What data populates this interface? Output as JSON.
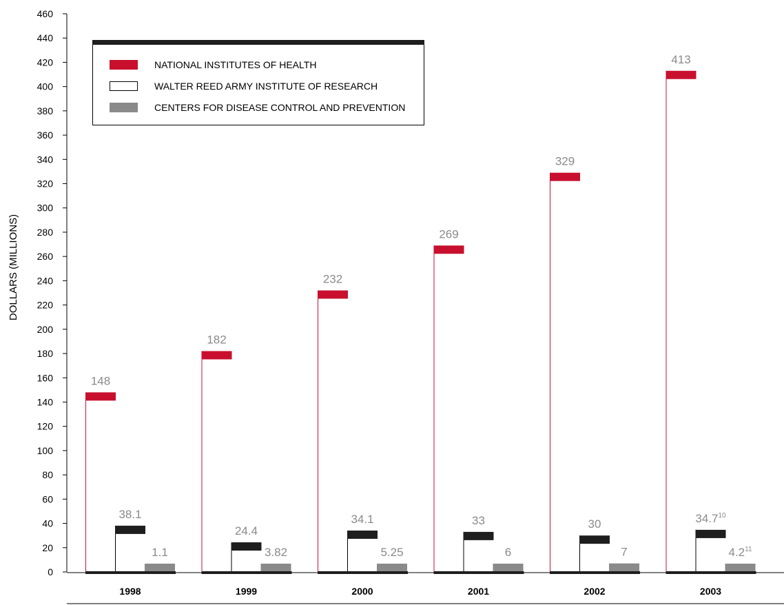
{
  "colors": {
    "nih": "#c8102e",
    "wrair": "#ffffff",
    "cdc": "#8a8a8a",
    "cap": "#1e1e1e",
    "axis": "#000000",
    "value_text": "#8a8a8a"
  },
  "chart_data": {
    "type": "bar",
    "title": "",
    "xlabel": "",
    "ylabel": "DOLLARS (MILLIONS)",
    "ylim": [
      0,
      460
    ],
    "yticks": [
      0,
      20,
      40,
      60,
      80,
      100,
      120,
      140,
      160,
      180,
      200,
      220,
      240,
      260,
      280,
      300,
      320,
      340,
      360,
      380,
      400,
      420,
      440,
      460
    ],
    "grid": false,
    "legend_position": "top-left",
    "categories": [
      "1998",
      "1999",
      "2000",
      "2001",
      "2002",
      "2003"
    ],
    "series": [
      {
        "name": "NATIONAL INSTITUTES OF HEALTH",
        "values": [
          148,
          182,
          232,
          269,
          329,
          413
        ],
        "labels": [
          "148",
          "182",
          "232",
          "269",
          "329",
          "413"
        ],
        "footnotes": [
          "",
          "",
          "",
          "",
          "",
          ""
        ]
      },
      {
        "name": "WALTER REED ARMY INSTITUTE OF RESEARCH",
        "values": [
          38.1,
          24.4,
          34.1,
          33,
          30,
          34.7
        ],
        "labels": [
          "38.1",
          "24.4",
          "34.1",
          "33",
          "30",
          "34.7"
        ],
        "footnotes": [
          "",
          "",
          "",
          "",
          "",
          "10"
        ]
      },
      {
        "name": "CENTERS FOR DISEASE CONTROL AND PREVENTION",
        "values": [
          1.1,
          3.82,
          5.25,
          6,
          7,
          4.2
        ],
        "labels": [
          "1.1",
          "3.82",
          "5.25",
          "6",
          "7",
          "4.2"
        ],
        "footnotes": [
          "",
          "",
          "",
          "",
          "",
          "11"
        ]
      }
    ]
  }
}
